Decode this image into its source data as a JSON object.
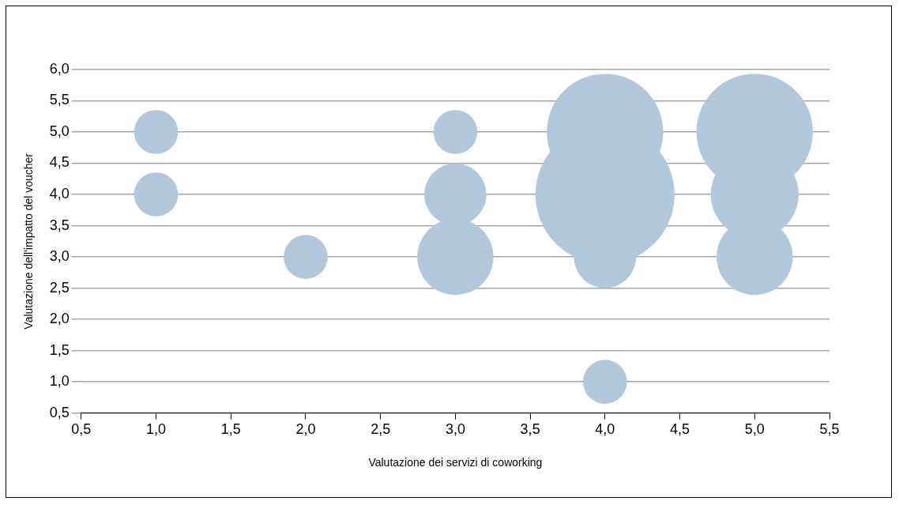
{
  "chart_data": {
    "type": "bubble",
    "xlabel": "Valutazione dei servizi di coworking",
    "ylabel": "Valutazione dell'impatto del voucher",
    "x": [
      1,
      1,
      2,
      3,
      3,
      3,
      4,
      4,
      4,
      4,
      5,
      5,
      5
    ],
    "values": [
      5,
      4,
      3,
      5,
      4,
      3,
      5,
      4,
      3,
      1,
      5,
      4,
      3
    ],
    "sizes": [
      0.1,
      0.1,
      0.1,
      0.1,
      0.2,
      0.3,
      0.7,
      1,
      0.2,
      0.1,
      0.7,
      0.4,
      0.3
    ],
    "color": "#b3c7da",
    "xlim": [
      0.5,
      5.5
    ],
    "xticks": [
      {
        "value": 0.5,
        "label": "0,5"
      },
      {
        "value": 1,
        "label": "1,0"
      },
      {
        "value": 1.5,
        "label": "1,5"
      },
      {
        "value": 2,
        "label": "2,0"
      },
      {
        "value": 2.5,
        "label": "2,5"
      },
      {
        "value": 3,
        "label": "3,0"
      },
      {
        "value": 3.5,
        "label": "3,5"
      },
      {
        "value": 4,
        "label": "4,0"
      },
      {
        "value": 4.5,
        "label": "4,5"
      },
      {
        "value": 5,
        "label": "5,0"
      },
      {
        "value": 5.5,
        "label": "5,5"
      }
    ],
    "ylim": [
      0.5,
      6
    ],
    "yticks": [
      {
        "value": 0.5,
        "label": "0,5"
      },
      {
        "value": 1,
        "label": "1,0"
      },
      {
        "value": 1.5,
        "label": "1,5"
      },
      {
        "value": 2,
        "label": "2,0"
      },
      {
        "value": 2.5,
        "label": "2,5"
      },
      {
        "value": 3,
        "label": "3,0"
      },
      {
        "value": 3.5,
        "label": "3,5"
      },
      {
        "value": 4,
        "label": "4,0"
      },
      {
        "value": 4.5,
        "label": "4,5"
      },
      {
        "value": 5,
        "label": "5,0"
      },
      {
        "value": 5.5,
        "label": "5,5"
      },
      {
        "value": 6,
        "label": "6,0"
      }
    ],
    "grid": "y",
    "legend": false
  }
}
